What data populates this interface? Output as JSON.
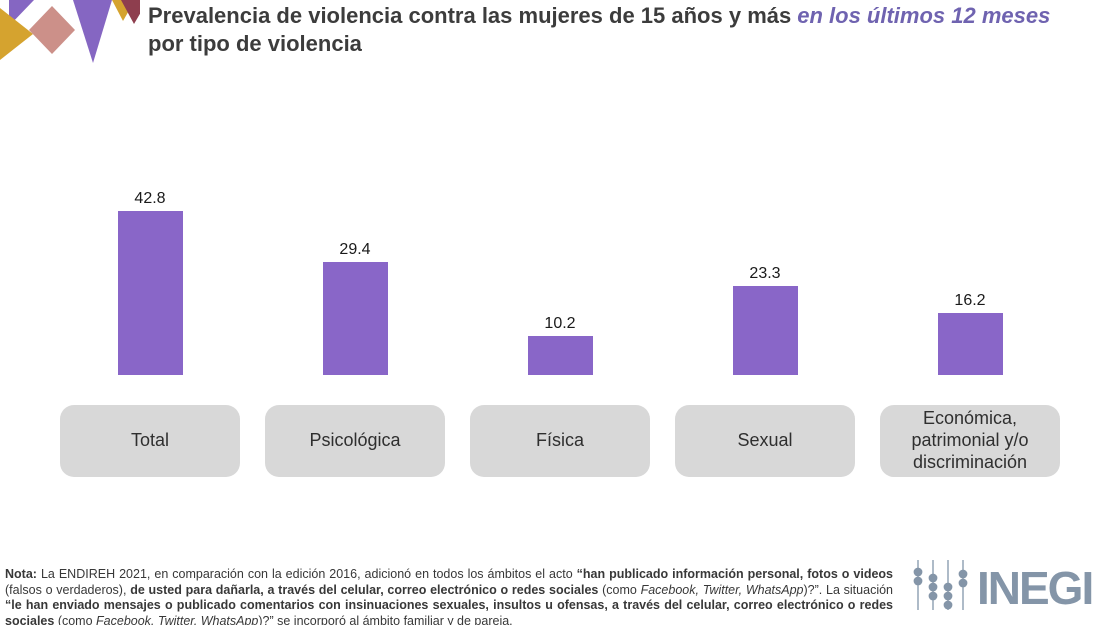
{
  "header": {
    "title_prefix": "Prevalencia de violencia contra las mujeres de 15 años y más",
    "title_highlight": "en los últimos 12 meses",
    "title_line2": "por tipo de violencia"
  },
  "chart_data": {
    "type": "bar",
    "title": "Prevalencia de violencia contra las mujeres de 15 años y más en los últimos 12 meses por tipo de violencia",
    "categories": [
      "Total",
      "Psicológica",
      "Física",
      "Sexual",
      "Económica, patrimonial y/o discriminación"
    ],
    "values": [
      42.8,
      29.4,
      10.2,
      23.3,
      16.2
    ],
    "value_labels": [
      "42.8",
      "29.4",
      "10.2",
      "23.3",
      "16.2"
    ],
    "xlabel": "",
    "ylabel": "",
    "ylim": [
      0,
      45
    ],
    "grid": false,
    "legend": false,
    "axes_visible": false,
    "value_labels_position": "above-bars"
  },
  "note": {
    "segments": [
      {
        "text": "Nota:",
        "bold": true
      },
      {
        "text": " La ENDIREH 2021, en comparación con la edición 2016, adicionó en todos los ámbitos el acto "
      },
      {
        "text": "“han publicado información personal, fotos o videos",
        "bold": true
      },
      {
        "text": " (falsos o verdaderos), "
      },
      {
        "text": "de usted para dañarla, a través del celular, correo electrónico o redes sociales",
        "bold": true
      },
      {
        "text": " (como "
      },
      {
        "text": "Facebook, Twitter, WhatsApp",
        "italic": true
      },
      {
        "text": ")?”. La situación "
      },
      {
        "text": "“le han enviado mensajes o publicado comentarios con insinuaciones sexuales, insultos u ofensas, a través del celular, correo electrónico o redes sociales",
        "bold": true
      },
      {
        "text": " (como "
      },
      {
        "text": "Facebook, Twitter, WhatsApp",
        "italic": true
      },
      {
        "text": ")?” se incorporó al ámbito familiar y de pareja."
      }
    ]
  },
  "footer": {
    "brand": "INEGI"
  },
  "colors": {
    "bar": "#8966C8",
    "title_text": "#3C3C3C",
    "title_highlight": "#6F63B0",
    "category_box": "#D8D8D8",
    "inegi": "#8495A8",
    "logo_gold": "#D5A32F",
    "logo_purple": "#8566C2",
    "logo_pink": "#CC9089",
    "logo_maroon": "#8E3E4E"
  }
}
